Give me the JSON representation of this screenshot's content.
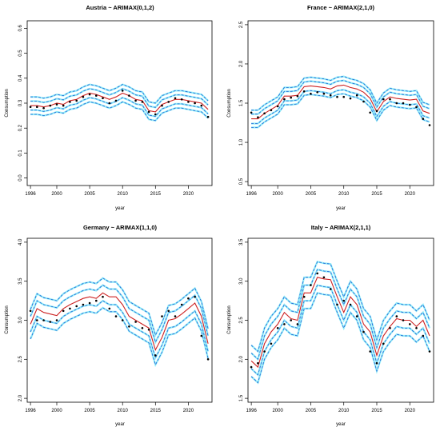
{
  "chart_data": [
    {
      "type": "line",
      "title": "Austria ~ ARIMAX(0,1,2)",
      "xlabel": "year",
      "ylabel": "Consumption",
      "xlim": [
        1995.5,
        2023.6
      ],
      "ylim": [
        -0.03,
        0.63
      ],
      "xticks": [
        "1996",
        "2000",
        "2005",
        "2010",
        "2015",
        "2020"
      ],
      "yticks": [
        "0.0",
        "0.1",
        "0.2",
        "0.3",
        "0.4",
        "0.5",
        "0.6"
      ],
      "x": [
        1996,
        1997,
        1998,
        1999,
        2000,
        2001,
        2002,
        2003,
        2004,
        2005,
        2006,
        2007,
        2008,
        2009,
        2010,
        2011,
        2012,
        2013,
        2014,
        2015,
        2016,
        2017,
        2018,
        2019,
        2020,
        2021,
        2022,
        2023
      ],
      "series": [
        {
          "role": "observed",
          "color": "#000000",
          "values": [
            0.285,
            0.285,
            0.28,
            0.29,
            0.295,
            0.29,
            0.305,
            0.31,
            0.325,
            0.335,
            0.33,
            0.32,
            0.3,
            0.31,
            0.35,
            0.33,
            0.31,
            0.305,
            0.265,
            0.255,
            0.29,
            0.305,
            0.32,
            0.315,
            0.305,
            0.3,
            0.29,
            0.245
          ]
        },
        {
          "role": "fitted",
          "color": "#cc2222",
          "values": [
            0.29,
            0.29,
            0.285,
            0.29,
            0.3,
            0.295,
            0.31,
            0.315,
            0.33,
            0.34,
            0.335,
            0.325,
            0.315,
            0.325,
            0.34,
            0.33,
            0.315,
            0.31,
            0.27,
            0.265,
            0.295,
            0.305,
            0.315,
            0.315,
            0.31,
            0.305,
            0.3,
            0.275
          ]
        }
      ],
      "inner_band": 0.018,
      "outer_band": 0.035
    },
    {
      "type": "line",
      "title": "France ~ ARIMAX(2,1,0)",
      "xlabel": "year",
      "ylabel": "Consumption",
      "xlim": [
        1995.5,
        2023.6
      ],
      "ylim": [
        0.45,
        2.55
      ],
      "xticks": [
        "1996",
        "2000",
        "2005",
        "2010",
        "2015",
        "2020"
      ],
      "yticks": [
        "0.5",
        "1.0",
        "1.5",
        "2.0",
        "2.5"
      ],
      "x": [
        1996,
        1997,
        1998,
        1999,
        2000,
        2001,
        2002,
        2003,
        2004,
        2005,
        2006,
        2007,
        2008,
        2009,
        2010,
        2011,
        2012,
        2013,
        2014,
        2015,
        2016,
        2017,
        2018,
        2019,
        2020,
        2021,
        2022,
        2023
      ],
      "series": [
        {
          "role": "observed",
          "color": "#000000",
          "values": [
            1.38,
            1.32,
            1.37,
            1.41,
            1.46,
            1.55,
            1.57,
            1.59,
            1.65,
            1.62,
            1.64,
            1.62,
            1.6,
            1.58,
            1.58,
            1.56,
            1.6,
            1.52,
            1.38,
            1.4,
            1.55,
            1.55,
            1.5,
            1.5,
            1.48,
            1.45,
            1.3,
            1.22
          ]
        },
        {
          "role": "fitted",
          "color": "#cc2222",
          "values": [
            1.3,
            1.3,
            1.37,
            1.42,
            1.47,
            1.59,
            1.59,
            1.6,
            1.71,
            1.72,
            1.71,
            1.7,
            1.68,
            1.72,
            1.73,
            1.7,
            1.68,
            1.64,
            1.56,
            1.39,
            1.52,
            1.58,
            1.56,
            1.55,
            1.54,
            1.55,
            1.4,
            1.37
          ]
        }
      ],
      "inner_band": 0.06,
      "outer_band": 0.11
    },
    {
      "type": "line",
      "title": "Germany ~ ARIMAX(1,1,0)",
      "xlabel": "year",
      "ylabel": "Consumption",
      "xlim": [
        1995.5,
        2023.6
      ],
      "ylim": [
        1.95,
        4.05
      ],
      "xticks": [
        "1996",
        "2000",
        "2005",
        "2010",
        "2015",
        "2020"
      ],
      "yticks": [
        "2.0",
        "2.5",
        "3.0",
        "3.5",
        "4.0"
      ],
      "x": [
        1996,
        1997,
        1998,
        1999,
        2000,
        2001,
        2002,
        2003,
        2004,
        2005,
        2006,
        2007,
        2008,
        2009,
        2010,
        2011,
        2012,
        2013,
        2014,
        2015,
        2016,
        2017,
        2018,
        2019,
        2020,
        2021,
        2022,
        2023
      ],
      "series": [
        {
          "role": "observed",
          "color": "#000000",
          "values": [
            3.12,
            3.0,
            3.0,
            2.98,
            3.0,
            3.12,
            3.15,
            3.18,
            3.2,
            3.22,
            3.25,
            3.3,
            3.15,
            3.05,
            3.0,
            2.92,
            2.98,
            2.9,
            2.88,
            2.55,
            3.05,
            3.12,
            3.05,
            3.2,
            3.28,
            3.3,
            2.8,
            2.5
          ]
        },
        {
          "role": "fitted",
          "color": "#cc2222",
          "values": [
            2.95,
            3.15,
            3.1,
            3.08,
            3.06,
            3.15,
            3.2,
            3.24,
            3.28,
            3.3,
            3.28,
            3.35,
            3.3,
            3.3,
            3.2,
            3.05,
            3.0,
            2.95,
            2.9,
            2.62,
            2.78,
            3.0,
            3.02,
            3.08,
            3.15,
            3.22,
            3.05,
            2.7
          ]
        }
      ],
      "inner_band": 0.1,
      "outer_band": 0.19
    },
    {
      "type": "line",
      "title": "Italy ~ ARIMAX(2,1,1)",
      "xlabel": "year",
      "ylabel": "Consumption",
      "xlim": [
        1995.5,
        2023.6
      ],
      "ylim": [
        1.45,
        3.55
      ],
      "xticks": [
        "1996",
        "2000",
        "2005",
        "2010",
        "2015",
        "2020"
      ],
      "yticks": [
        "1.5",
        "2.0",
        "2.5",
        "3.0",
        "3.5"
      ],
      "x": [
        1996,
        1997,
        1998,
        1999,
        2000,
        2001,
        2002,
        2003,
        2004,
        2005,
        2006,
        2007,
        2008,
        2009,
        2010,
        2011,
        2012,
        2013,
        2014,
        2015,
        2016,
        2017,
        2018,
        2019,
        2020,
        2021,
        2022,
        2023
      ],
      "series": [
        {
          "role": "observed",
          "color": "#000000",
          "values": [
            1.9,
            1.95,
            2.1,
            2.2,
            2.4,
            2.45,
            2.5,
            2.45,
            2.8,
            2.95,
            3.1,
            3.05,
            2.9,
            2.7,
            2.75,
            2.7,
            2.55,
            2.35,
            2.1,
            1.95,
            2.2,
            2.4,
            2.55,
            2.5,
            2.45,
            2.4,
            2.3,
            2.1
          ]
        },
        {
          "role": "fitted",
          "color": "#cc2222",
          "values": [
            1.98,
            1.9,
            2.2,
            2.35,
            2.45,
            2.6,
            2.52,
            2.5,
            2.85,
            2.85,
            3.05,
            3.03,
            3.02,
            2.8,
            2.6,
            2.8,
            2.7,
            2.45,
            2.35,
            2.05,
            2.3,
            2.42,
            2.52,
            2.5,
            2.5,
            2.42,
            2.5,
            2.3
          ]
        }
      ],
      "inner_band": 0.1,
      "outer_band": 0.2
    }
  ]
}
